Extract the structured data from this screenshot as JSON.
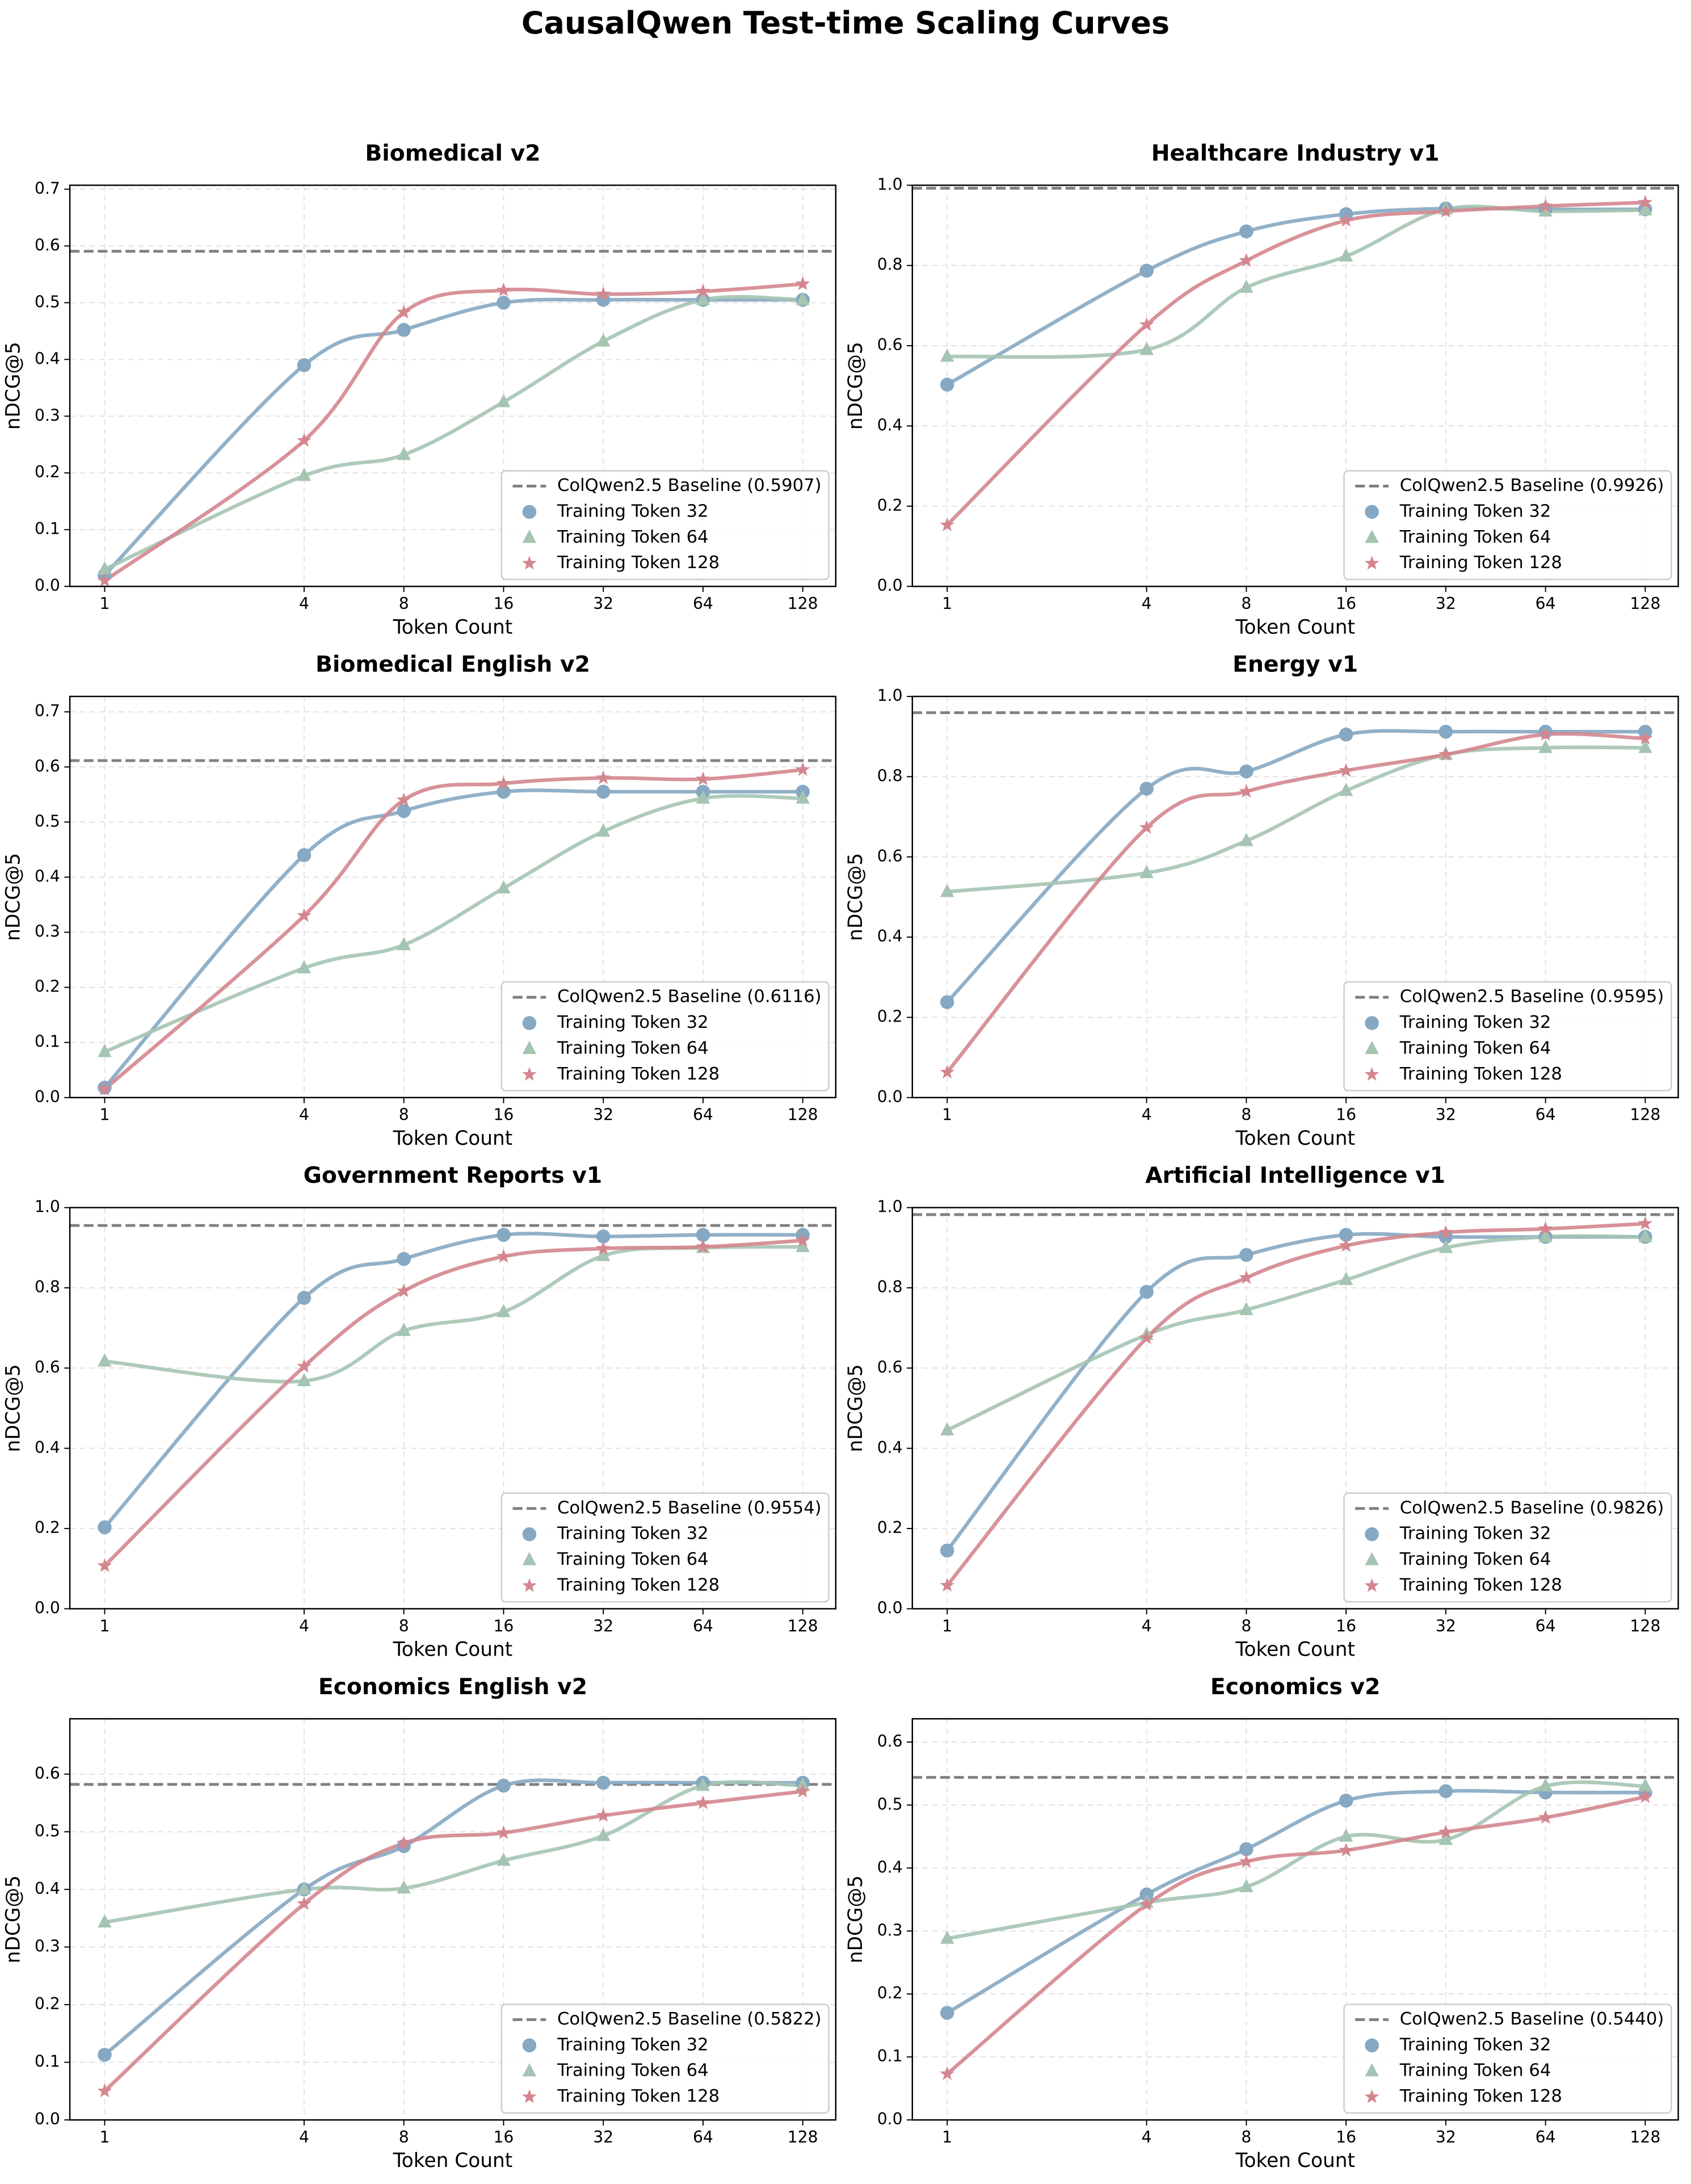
{
  "title": "CausalQwen Test-time Scaling Curves",
  "chart_data": [
    {
      "type": "line",
      "title": "Biomedical v2",
      "x_label": "Token Count",
      "y_label": "nDCG@5",
      "x": [
        1,
        4,
        8,
        16,
        32,
        64,
        128
      ],
      "xscale": "log2",
      "xlim": [
        0.785,
        161
      ],
      "xticks": [
        1,
        4,
        8,
        16,
        32,
        64,
        128
      ],
      "ylim": [
        0,
        0.707
      ],
      "yticks": [
        {
          "value": 0,
          "label": "0.0"
        },
        0.1,
        0.2,
        0.3,
        0.4,
        0.5,
        0.6,
        0.7
      ],
      "grid": true,
      "legend": "lower right",
      "baseline": {
        "name": "ColQwen2.5 Baseline (0.5907)",
        "value": 0.5907,
        "color": "#808080"
      },
      "series": [
        {
          "name": "Training Token 32",
          "color": "#86a8c2",
          "marker": "circle",
          "values": [
            0.02,
            0.39,
            0.452,
            0.5,
            0.505,
            0.505,
            0.505
          ]
        },
        {
          "name": "Training Token 64",
          "color": "#a5c4b2",
          "marker": "triangle",
          "values": [
            0.03,
            0.195,
            0.232,
            0.325,
            0.432,
            0.505,
            0.505
          ]
        },
        {
          "name": "Training Token 128",
          "color": "#d4868e",
          "marker": "star",
          "values": [
            0.01,
            0.257,
            0.483,
            0.522,
            0.515,
            0.52,
            0.533
          ]
        }
      ]
    },
    {
      "type": "line",
      "title": "Healthcare Industry v1",
      "x_label": "Token Count",
      "y_label": "nDCG@5",
      "x": [
        1,
        4,
        8,
        16,
        32,
        64,
        128
      ],
      "xscale": "log2",
      "xlim": [
        0.785,
        161
      ],
      "xticks": [
        1,
        4,
        8,
        16,
        32,
        64,
        128
      ],
      "ylim": [
        0,
        1
      ],
      "yticks": [
        {
          "value": 0,
          "label": "0.0"
        },
        0.2,
        0.4,
        0.6,
        0.8,
        {
          "value": 1,
          "label": "1.0"
        }
      ],
      "grid": true,
      "legend": "lower right",
      "baseline": {
        "name": "ColQwen2.5 Baseline (0.9926)",
        "value": 0.9926,
        "color": "#808080"
      },
      "series": [
        {
          "name": "Training Token 32",
          "color": "#86a8c2",
          "marker": "circle",
          "values": [
            0.503,
            0.787,
            0.885,
            0.928,
            0.942,
            0.94,
            0.94
          ]
        },
        {
          "name": "Training Token 64",
          "color": "#a5c4b2",
          "marker": "triangle",
          "values": [
            0.573,
            0.59,
            0.745,
            0.823,
            0.94,
            0.935,
            0.938
          ]
        },
        {
          "name": "Training Token 128",
          "color": "#d4868e",
          "marker": "star",
          "values": [
            0.153,
            0.652,
            0.812,
            0.912,
            0.935,
            0.948,
            0.957
          ]
        }
      ]
    },
    {
      "type": "line",
      "title": "Biomedical English v2",
      "x_label": "Token Count",
      "y_label": "nDCG@5",
      "x": [
        1,
        4,
        8,
        16,
        32,
        64,
        128
      ],
      "xscale": "log2",
      "xlim": [
        0.785,
        161
      ],
      "xticks": [
        1,
        4,
        8,
        16,
        32,
        64,
        128
      ],
      "ylim": [
        0,
        0.728
      ],
      "yticks": [
        {
          "value": 0,
          "label": "0.0"
        },
        0.1,
        0.2,
        0.3,
        0.4,
        0.5,
        0.6,
        0.7
      ],
      "grid": true,
      "legend": "lower right",
      "baseline": {
        "name": "ColQwen2.5 Baseline (0.6116)",
        "value": 0.6116,
        "color": "#808080"
      },
      "series": [
        {
          "name": "Training Token 32",
          "color": "#86a8c2",
          "marker": "circle",
          "values": [
            0.018,
            0.44,
            0.52,
            0.555,
            0.555,
            0.555,
            0.555
          ]
        },
        {
          "name": "Training Token 64",
          "color": "#a5c4b2",
          "marker": "triangle",
          "values": [
            0.083,
            0.235,
            0.277,
            0.38,
            0.483,
            0.543,
            0.543
          ]
        },
        {
          "name": "Training Token 128",
          "color": "#d4868e",
          "marker": "star",
          "values": [
            0.015,
            0.33,
            0.54,
            0.57,
            0.58,
            0.578,
            0.595
          ]
        }
      ]
    },
    {
      "type": "line",
      "title": "Energy v1",
      "x_label": "Token Count",
      "y_label": "nDCG@5",
      "x": [
        1,
        4,
        8,
        16,
        32,
        64,
        128
      ],
      "xscale": "log2",
      "xlim": [
        0.785,
        161
      ],
      "xticks": [
        1,
        4,
        8,
        16,
        32,
        64,
        128
      ],
      "ylim": [
        0,
        1
      ],
      "yticks": [
        {
          "value": 0,
          "label": "0.0"
        },
        0.2,
        0.4,
        0.6,
        0.8,
        {
          "value": 1,
          "label": "1.0"
        }
      ],
      "grid": true,
      "legend": "lower right",
      "baseline": {
        "name": "ColQwen2.5 Baseline (0.9595)",
        "value": 0.9595,
        "color": "#808080"
      },
      "series": [
        {
          "name": "Training Token 32",
          "color": "#86a8c2",
          "marker": "circle",
          "values": [
            0.238,
            0.77,
            0.813,
            0.905,
            0.912,
            0.912,
            0.912
          ]
        },
        {
          "name": "Training Token 64",
          "color": "#a5c4b2",
          "marker": "triangle",
          "values": [
            0.513,
            0.56,
            0.64,
            0.765,
            0.855,
            0.872,
            0.872
          ]
        },
        {
          "name": "Training Token 128",
          "color": "#d4868e",
          "marker": "star",
          "values": [
            0.063,
            0.673,
            0.763,
            0.815,
            0.855,
            0.905,
            0.895
          ]
        }
      ]
    },
    {
      "type": "line",
      "title": "Government Reports v1",
      "x_label": "Token Count",
      "y_label": "nDCG@5",
      "x": [
        1,
        4,
        8,
        16,
        32,
        64,
        128
      ],
      "xscale": "log2",
      "xlim": [
        0.785,
        161
      ],
      "xticks": [
        1,
        4,
        8,
        16,
        32,
        64,
        128
      ],
      "ylim": [
        0,
        1
      ],
      "yticks": [
        {
          "value": 0,
          "label": "0.0"
        },
        0.2,
        0.4,
        0.6,
        0.8,
        {
          "value": 1,
          "label": "1.0"
        }
      ],
      "grid": true,
      "legend": "lower right",
      "baseline": {
        "name": "ColQwen2.5 Baseline (0.9554)",
        "value": 0.9554,
        "color": "#808080"
      },
      "series": [
        {
          "name": "Training Token 32",
          "color": "#86a8c2",
          "marker": "circle",
          "values": [
            0.203,
            0.775,
            0.872,
            0.932,
            0.928,
            0.932,
            0.932
          ]
        },
        {
          "name": "Training Token 64",
          "color": "#a5c4b2",
          "marker": "triangle",
          "values": [
            0.617,
            0.568,
            0.693,
            0.74,
            0.88,
            0.9,
            0.902
          ]
        },
        {
          "name": "Training Token 128",
          "color": "#d4868e",
          "marker": "star",
          "values": [
            0.107,
            0.604,
            0.792,
            0.878,
            0.898,
            0.902,
            0.918
          ]
        }
      ]
    },
    {
      "type": "line",
      "title": "Artificial Intelligence v1",
      "x_label": "Token Count",
      "y_label": "nDCG@5",
      "x": [
        1,
        4,
        8,
        16,
        32,
        64,
        128
      ],
      "xscale": "log2",
      "xlim": [
        0.785,
        161
      ],
      "xticks": [
        1,
        4,
        8,
        16,
        32,
        64,
        128
      ],
      "ylim": [
        0,
        1
      ],
      "yticks": [
        {
          "value": 0,
          "label": "0.0"
        },
        0.2,
        0.4,
        0.6,
        0.8,
        {
          "value": 1,
          "label": "1.0"
        }
      ],
      "grid": true,
      "legend": "lower right",
      "baseline": {
        "name": "ColQwen2.5 Baseline (0.9826)",
        "value": 0.9826,
        "color": "#808080"
      },
      "series": [
        {
          "name": "Training Token 32",
          "color": "#86a8c2",
          "marker": "circle",
          "values": [
            0.145,
            0.79,
            0.882,
            0.932,
            0.927,
            0.927,
            0.927
          ]
        },
        {
          "name": "Training Token 64",
          "color": "#a5c4b2",
          "marker": "triangle",
          "values": [
            0.445,
            0.683,
            0.745,
            0.82,
            0.9,
            0.927,
            0.927
          ]
        },
        {
          "name": "Training Token 128",
          "color": "#d4868e",
          "marker": "star",
          "values": [
            0.058,
            0.675,
            0.825,
            0.905,
            0.938,
            0.947,
            0.96
          ]
        }
      ]
    },
    {
      "type": "line",
      "title": "Economics English v2",
      "x_label": "Token Count",
      "y_label": "nDCG@5",
      "x": [
        1,
        4,
        8,
        16,
        32,
        64,
        128
      ],
      "xscale": "log2",
      "xlim": [
        0.785,
        161
      ],
      "xticks": [
        1,
        4,
        8,
        16,
        32,
        64,
        128
      ],
      "ylim": [
        0,
        0.696
      ],
      "yticks": [
        {
          "value": 0,
          "label": "0.0"
        },
        0.1,
        0.2,
        0.3,
        0.4,
        0.5,
        0.6
      ],
      "grid": true,
      "legend": "lower right",
      "baseline": {
        "name": "ColQwen2.5 Baseline (0.5822)",
        "value": 0.5822,
        "color": "#808080"
      },
      "series": [
        {
          "name": "Training Token 32",
          "color": "#86a8c2",
          "marker": "circle",
          "values": [
            0.113,
            0.4,
            0.475,
            0.58,
            0.585,
            0.585,
            0.585
          ]
        },
        {
          "name": "Training Token 64",
          "color": "#a5c4b2",
          "marker": "triangle",
          "values": [
            0.343,
            0.4,
            0.402,
            0.45,
            0.493,
            0.58,
            0.58
          ]
        },
        {
          "name": "Training Token 128",
          "color": "#d4868e",
          "marker": "star",
          "values": [
            0.05,
            0.375,
            0.48,
            0.498,
            0.528,
            0.55,
            0.57
          ]
        }
      ]
    },
    {
      "type": "line",
      "title": "Economics v2",
      "x_label": "Token Count",
      "y_label": "nDCG@5",
      "x": [
        1,
        4,
        8,
        16,
        32,
        64,
        128
      ],
      "xscale": "log2",
      "xlim": [
        0.785,
        161
      ],
      "xticks": [
        1,
        4,
        8,
        16,
        32,
        64,
        128
      ],
      "ylim": [
        0,
        0.637
      ],
      "yticks": [
        {
          "value": 0,
          "label": "0.0"
        },
        0.1,
        0.2,
        0.3,
        0.4,
        0.5,
        0.6
      ],
      "grid": true,
      "legend": "lower right",
      "baseline": {
        "name": "ColQwen2.5 Baseline (0.5440)",
        "value": 0.544,
        "color": "#808080"
      },
      "series": [
        {
          "name": "Training Token 32",
          "color": "#86a8c2",
          "marker": "circle",
          "values": [
            0.17,
            0.358,
            0.43,
            0.507,
            0.522,
            0.52,
            0.52
          ]
        },
        {
          "name": "Training Token 64",
          "color": "#a5c4b2",
          "marker": "triangle",
          "values": [
            0.288,
            0.345,
            0.37,
            0.45,
            0.445,
            0.53,
            0.53
          ]
        },
        {
          "name": "Training Token 128",
          "color": "#d4868e",
          "marker": "star",
          "values": [
            0.073,
            0.342,
            0.41,
            0.428,
            0.457,
            0.48,
            0.513
          ]
        }
      ]
    }
  ]
}
